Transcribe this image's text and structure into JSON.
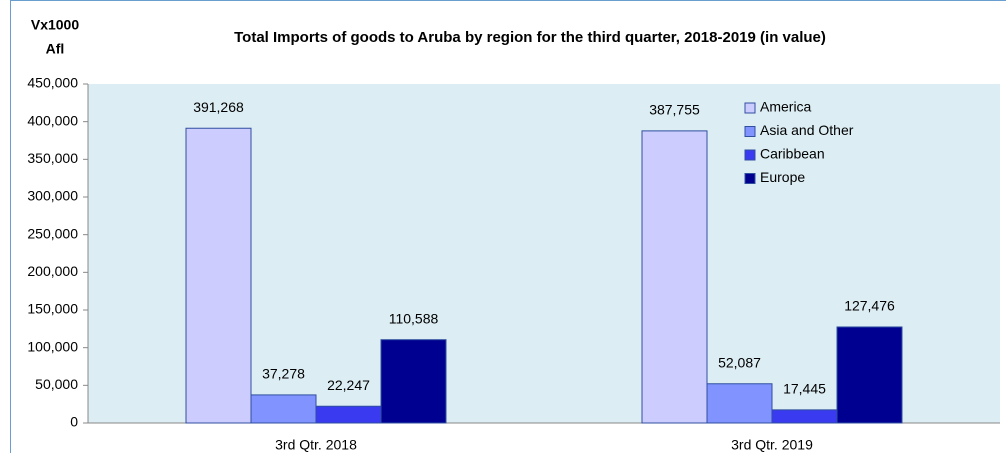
{
  "chart_data": {
    "type": "bar",
    "title": "Total Imports of goods to Aruba by region for the third quarter, 2018-2019 (in value)",
    "ylabel": [
      "Vx1000",
      "Afl"
    ],
    "categories": [
      "3rd Qtr. 2018",
      "3rd Qtr. 2019"
    ],
    "series": [
      {
        "name": "America",
        "color": "#ccccff",
        "values": [
          391268,
          387755
        ],
        "value_labels": [
          "391,268",
          "387,755"
        ]
      },
      {
        "name": "Asia and Other",
        "color": "#8093ff",
        "values": [
          37278,
          52087
        ],
        "value_labels": [
          "37,278",
          "52,087"
        ]
      },
      {
        "name": "Caribbean",
        "color": "#3a3af0",
        "values": [
          22247,
          17445
        ],
        "value_labels": [
          "22,247",
          "17,445"
        ]
      },
      {
        "name": "Europe",
        "color": "#000090",
        "values": [
          110588,
          127476
        ],
        "value_labels": [
          "110,588",
          "127,476"
        ]
      }
    ],
    "ylim": [
      0,
      450000
    ],
    "yticks": [
      0,
      {
        "value": 50000,
        "label": "50,000"
      },
      {
        "value": 100000,
        "label": "100,000"
      },
      {
        "value": 150000,
        "label": "150,000"
      },
      {
        "value": 200000,
        "label": "200,000"
      },
      {
        "value": 250000,
        "label": "250,000"
      },
      {
        "value": 300000,
        "label": "300,000"
      },
      {
        "value": 350000,
        "label": "350,000"
      },
      {
        "value": 400000,
        "label": "400,000"
      },
      {
        "value": 450000,
        "label": "450,000"
      }
    ],
    "legend": "top-right"
  }
}
